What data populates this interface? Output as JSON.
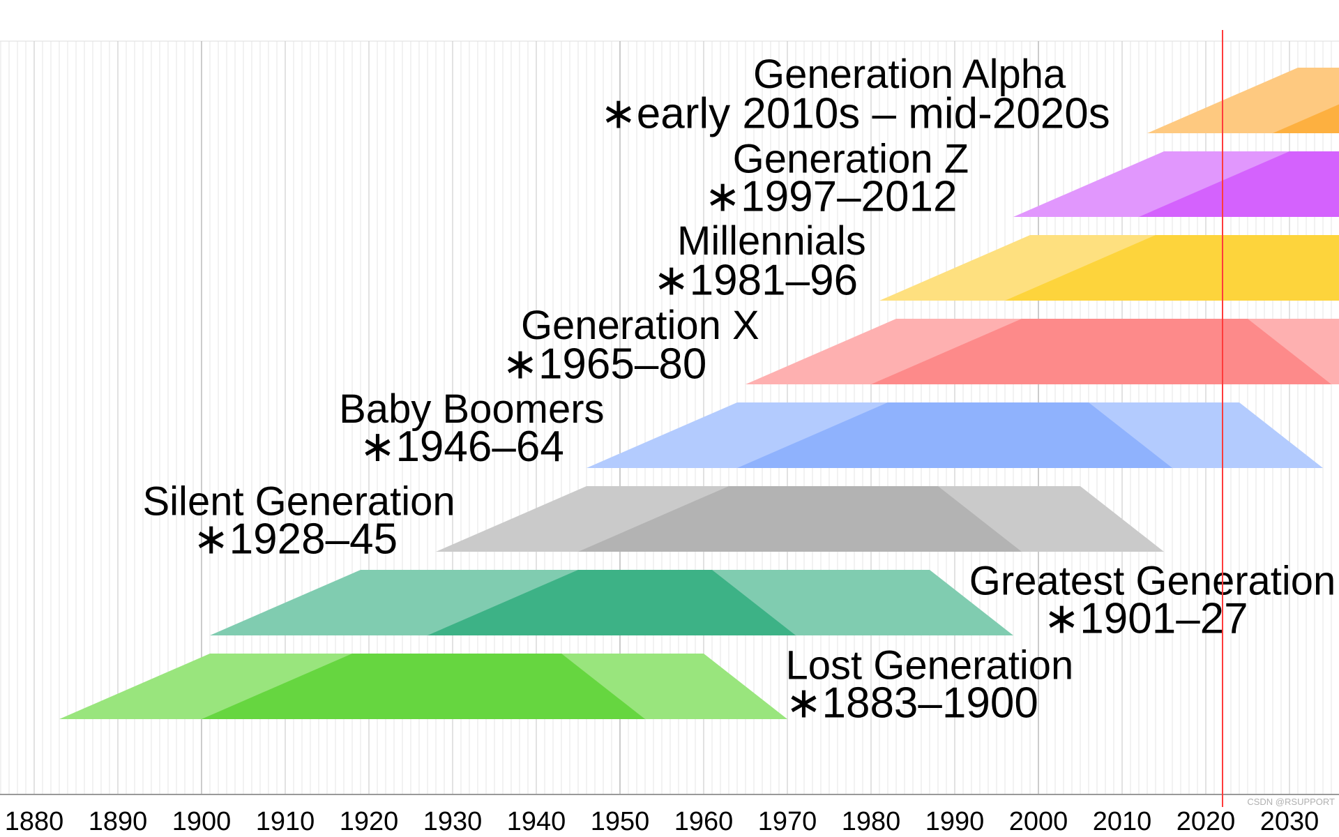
{
  "chart_data": {
    "type": "area",
    "title": "",
    "xlabel": "",
    "ylabel": "",
    "xlim": [
      1876,
      2036
    ],
    "x_ticks": [
      "1880",
      "1890",
      "1900",
      "1910",
      "1920",
      "1930",
      "1940",
      "1950",
      "1960",
      "1970",
      "1980",
      "1990",
      "2000",
      "2010",
      "2020",
      "2030"
    ],
    "grid": "vertical, yearly",
    "current_year_marker": 2022,
    "current_year_marker_color": "#ff3b3b",
    "series": [
      {
        "name": "Generation Alpha",
        "range_label": "∗early 2010s – mid-2020s",
        "start": 2013,
        "end": 2028,
        "outer_color": "#fec980",
        "inner_color": "#fdb040"
      },
      {
        "name": "Generation Z",
        "range_label": "∗1997–2012",
        "start": 1997,
        "end": 2012,
        "outer_color": "#e197fd",
        "inner_color": "#d462fd"
      },
      {
        "name": "Millennials",
        "range_label": "∗1981–96",
        "start": 1981,
        "end": 1996,
        "outer_color": "#fee07f",
        "inner_color": "#fdd43c"
      },
      {
        "name": "Generation X",
        "range_label": "∗1965–80",
        "start": 1965,
        "end": 1980,
        "outer_color": "#feb0b0",
        "inner_color": "#fd8a8a"
      },
      {
        "name": "Baby Boomers",
        "range_label": "∗1946–64",
        "start": 1946,
        "end": 1964,
        "outer_color": "#b3cbfe",
        "inner_color": "#8fb2fd"
      },
      {
        "name": "Silent Generation",
        "range_label": "∗1928–45",
        "start": 1928,
        "end": 1945,
        "outer_color": "#cacaca",
        "inner_color": "#b3b3b3"
      },
      {
        "name": "Greatest Generation",
        "range_label": "∗1901–27",
        "start": 1901,
        "end": 1927,
        "outer_color": "#80ccb0",
        "inner_color": "#3db286"
      },
      {
        "name": "Lost Generation",
        "range_label": "∗1883–1900",
        "start": 1883,
        "end": 1900,
        "outer_color": "#99e57d",
        "inner_color": "#66d640"
      }
    ],
    "life_stage_offsets_years": [
      0,
      18,
      60,
      70
    ]
  },
  "watermark": "CSDN @RSUPPORT"
}
